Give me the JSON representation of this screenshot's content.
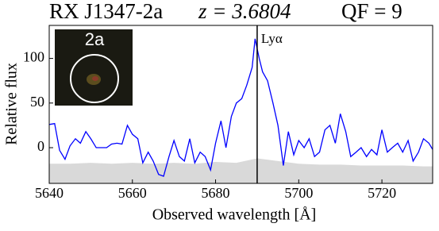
{
  "chart_data": {
    "type": "line",
    "title_object": "RX J1347-2a",
    "title_redshift": "z = 3.6804",
    "title_qf": "QF = 9",
    "xlabel": "Observed wavelength  [Å]",
    "ylabel": "Relative flux",
    "inset_label": "2a",
    "line_marker": {
      "x": 5690,
      "label": "Lyα",
      "color": "#000000"
    },
    "series": [
      {
        "kind": "area",
        "color": "#d9d9d9",
        "x": [
          5640,
          5645,
          5650,
          5655,
          5660,
          5665,
          5670,
          5675,
          5680,
          5685,
          5690,
          5695,
          5700,
          5705,
          5710,
          5715,
          5720,
          5725,
          5730,
          5732.2
        ],
        "values": [
          -18,
          -18,
          -17,
          -18,
          -17,
          -18,
          -17,
          -18,
          -16,
          -17,
          -12,
          -15,
          -18,
          -19,
          -19,
          -20,
          -20,
          -20,
          -21,
          -21
        ]
      },
      {
        "kind": "line",
        "color": "#0000ff",
        "x": [
          5640,
          5641.3,
          5642.5,
          5643.8,
          5645,
          5646.3,
          5647.5,
          5648.8,
          5650,
          5651.3,
          5652.5,
          5653.8,
          5655,
          5656.3,
          5657.5,
          5658.8,
          5660,
          5661.3,
          5662.5,
          5663.8,
          5665,
          5666.3,
          5667.5,
          5668.8,
          5670,
          5671.3,
          5672.5,
          5673.8,
          5675,
          5676.3,
          5677.5,
          5678.8,
          5680,
          5681.3,
          5682.5,
          5683.8,
          5685,
          5686.3,
          5687.5,
          5688.8,
          5689.5,
          5690.5,
          5691.3,
          5692.5,
          5693.8,
          5695,
          5696.3,
          5697.5,
          5698.8,
          5700,
          5701.3,
          5702.5,
          5703.8,
          5705,
          5706.3,
          5707.5,
          5708.8,
          5710,
          5711.3,
          5712.5,
          5713.8,
          5715,
          5716.3,
          5717.5,
          5718.8,
          5720,
          5721.3,
          5722.5,
          5723.8,
          5725,
          5726.3,
          5727.5,
          5728.8,
          5730,
          5731.3,
          5732.2
        ],
        "values": [
          26,
          27,
          -3,
          -13,
          2,
          10,
          5,
          18,
          10,
          0,
          0,
          0,
          4,
          5,
          4,
          25,
          15,
          10,
          -17,
          -5,
          -15,
          -30,
          -32,
          -10,
          8,
          -10,
          -15,
          10,
          -17,
          -5,
          -10,
          -25,
          5,
          30,
          0,
          35,
          50,
          55,
          70,
          90,
          122,
          100,
          85,
          75,
          50,
          25,
          -20,
          18,
          -8,
          8,
          0,
          10,
          -10,
          -5,
          20,
          25,
          5,
          38,
          18,
          -10,
          -5,
          0,
          -10,
          -2,
          -8,
          20,
          -5,
          0,
          5,
          -5,
          8,
          -15,
          -5,
          10,
          5,
          -2
        ]
      }
    ],
    "xlim": [
      5640,
      5732.2
    ],
    "ylim": [
      -40,
      137
    ],
    "xticks": [
      5640,
      5660,
      5680,
      5700,
      5720
    ],
    "yticks": [
      0,
      50,
      100
    ]
  }
}
